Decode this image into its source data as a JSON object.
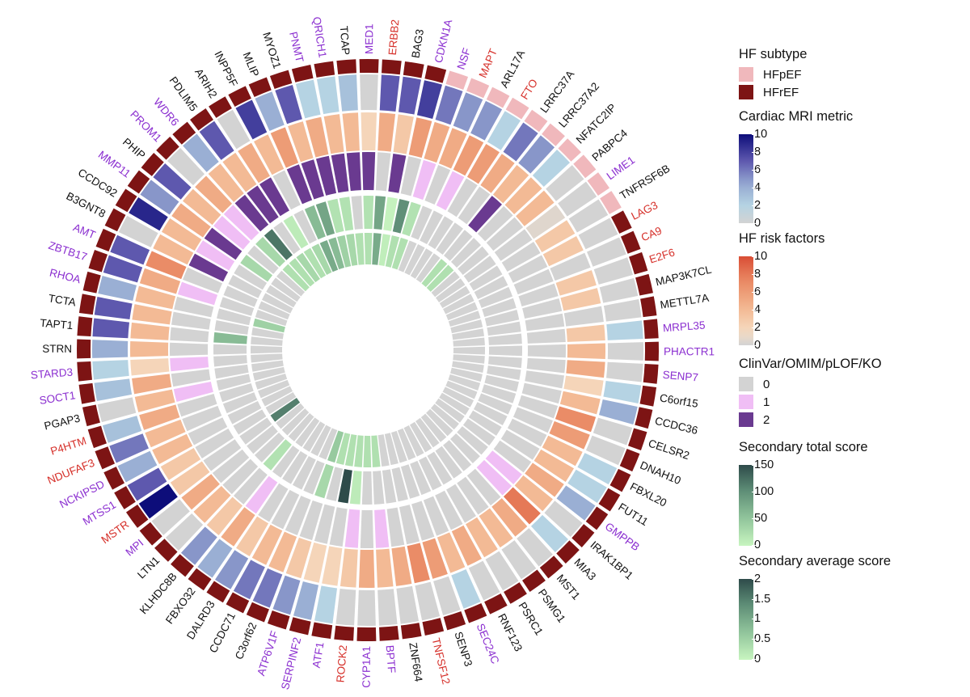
{
  "chart_data": {
    "type": "circular-heatmap",
    "rings_outer_to_inner": [
      "HF subtype",
      "Cardiac MRI metric",
      "HF risk factors",
      "ClinVar/OMIM/pLOF/KO",
      "Secondary total score",
      "Secondary average score"
    ],
    "genes": [
      {
        "name": "BAG3",
        "color": "black",
        "subtype": "HFrEF",
        "mri": 7,
        "risk": 3,
        "clin": 2,
        "tot": 3,
        "avg": 0.1
      },
      {
        "name": "CDKN1A",
        "color": "purple",
        "subtype": "HFrEF",
        "mri": 8,
        "risk": 6,
        "clin": 0,
        "tot": 100,
        "avg": 0.3
      },
      {
        "name": "NSF",
        "color": "purple",
        "subtype": "HFpEF",
        "mri": 6,
        "risk": 5,
        "clin": 1,
        "tot": 20,
        "avg": 0.3
      },
      {
        "name": "MAPT",
        "color": "red",
        "subtype": "HFpEF",
        "mri": 5,
        "risk": 5,
        "clin": 0,
        "tot": 0,
        "avg": 0
      },
      {
        "name": "ARL17A",
        "color": "black",
        "subtype": "HFpEF",
        "mri": 5,
        "risk": 6,
        "clin": 1,
        "tot": 0,
        "avg": 0
      },
      {
        "name": "FTO",
        "color": "red",
        "subtype": "HFpEF",
        "mri": 2,
        "risk": 6,
        "clin": 0,
        "tot": 0,
        "avg": 0
      },
      {
        "name": "LRRC37A",
        "color": "black",
        "subtype": "HFpEF",
        "mri": 6,
        "risk": 5,
        "clin": 0,
        "tot": 0,
        "avg": 0
      },
      {
        "name": "LRRC37A2",
        "color": "black",
        "subtype": "HFpEF",
        "mri": 5,
        "risk": 4,
        "clin": 2,
        "tot": 0,
        "avg": 0.3
      },
      {
        "name": "NFATC2IP",
        "color": "black",
        "subtype": "HFpEF",
        "mri": 2,
        "risk": 4,
        "clin": 0,
        "tot": 0,
        "avg": 0.3
      },
      {
        "name": "PABPC4",
        "color": "black",
        "subtype": "HFpEF",
        "mri": 0,
        "risk": 4,
        "clin": 0,
        "tot": 0,
        "avg": 0
      },
      {
        "name": "LIME1",
        "color": "purple",
        "subtype": "HFpEF",
        "mri": 0,
        "risk": 0.5,
        "clin": 0,
        "tot": 0,
        "avg": 0
      },
      {
        "name": "TNFRSF6B",
        "color": "black",
        "subtype": "HFpEF",
        "mri": 0,
        "risk": 3,
        "clin": 0,
        "tot": 0,
        "avg": 0
      },
      {
        "name": "LAG3",
        "color": "red",
        "subtype": "HFrEF",
        "mri": 0,
        "risk": 3,
        "clin": 0,
        "tot": 0,
        "avg": 0
      },
      {
        "name": "CA9",
        "color": "red",
        "subtype": "HFrEF",
        "mri": 0,
        "risk": 0,
        "clin": 0,
        "tot": 0,
        "avg": 0
      },
      {
        "name": "E2F6",
        "color": "red",
        "subtype": "HFrEF",
        "mri": 0,
        "risk": 3,
        "clin": 0,
        "tot": 0,
        "avg": 0
      },
      {
        "name": "MAP3K7CL",
        "color": "black",
        "subtype": "HFrEF",
        "mri": 0,
        "risk": 3,
        "clin": 0,
        "tot": 0,
        "avg": 0
      },
      {
        "name": "METTL7A",
        "color": "black",
        "subtype": "HFrEF",
        "mri": 0,
        "risk": 0,
        "clin": 0,
        "tot": 0,
        "avg": 0
      },
      {
        "name": "MRPL35",
        "color": "purple",
        "subtype": "HFrEF",
        "mri": 2,
        "risk": 3,
        "clin": 0,
        "tot": 0,
        "avg": 0
      },
      {
        "name": "PHACTR1",
        "color": "purple",
        "subtype": "HFrEF",
        "mri": 0,
        "risk": 4,
        "clin": 0,
        "tot": 0,
        "avg": 0
      },
      {
        "name": "SENP7",
        "color": "purple",
        "subtype": "HFrEF",
        "mri": 0,
        "risk": 5,
        "clin": 0,
        "tot": 0,
        "avg": 0
      },
      {
        "name": "C6orf15",
        "color": "black",
        "subtype": "HFrEF",
        "mri": 2,
        "risk": 2,
        "clin": 0,
        "tot": 0,
        "avg": 0
      },
      {
        "name": "CCDC36",
        "color": "black",
        "subtype": "HFrEF",
        "mri": 4,
        "risk": 4,
        "clin": 0,
        "tot": 0,
        "avg": 0
      },
      {
        "name": "CELSR2",
        "color": "black",
        "subtype": "HFrEF",
        "mri": 0,
        "risk": 7,
        "clin": 0,
        "tot": 0,
        "avg": 0
      },
      {
        "name": "DNAH10",
        "color": "black",
        "subtype": "HFrEF",
        "mri": 0,
        "risk": 6,
        "clin": 0,
        "tot": 0,
        "avg": 0
      },
      {
        "name": "FBXL20",
        "color": "black",
        "subtype": "HFrEF",
        "mri": 2,
        "risk": 4,
        "clin": 0,
        "tot": 0,
        "avg": 0
      },
      {
        "name": "FUT11",
        "color": "black",
        "subtype": "HFrEF",
        "mri": 2,
        "risk": 4,
        "clin": 0,
        "tot": 0,
        "avg": 0
      },
      {
        "name": "GMPPB",
        "color": "purple",
        "subtype": "HFrEF",
        "mri": 4,
        "risk": 5,
        "clin": 0,
        "tot": 0,
        "avg": 0
      },
      {
        "name": "IRAK1BP1",
        "color": "black",
        "subtype": "HFrEF",
        "mri": 0,
        "risk": 4,
        "clin": 1,
        "tot": 0,
        "avg": 0
      },
      {
        "name": "MIA3",
        "color": "black",
        "subtype": "HFrEF",
        "mri": 2,
        "risk": 8,
        "clin": 1,
        "tot": 0,
        "avg": 0
      },
      {
        "name": "MST1",
        "color": "black",
        "subtype": "HFrEF",
        "mri": 0,
        "risk": 5,
        "clin": 0,
        "tot": 0,
        "avg": 0
      },
      {
        "name": "PSMG1",
        "color": "black",
        "subtype": "HFrEF",
        "mri": 0,
        "risk": 4,
        "clin": 0,
        "tot": 0,
        "avg": 0
      },
      {
        "name": "PSRC1",
        "color": "black",
        "subtype": "HFrEF",
        "mri": 0,
        "risk": 4,
        "clin": 0,
        "tot": 0,
        "avg": 0
      },
      {
        "name": "RNF123",
        "color": "black",
        "subtype": "HFrEF",
        "mri": 0,
        "risk": 5,
        "clin": 0,
        "tot": 0,
        "avg": 0
      },
      {
        "name": "SEC24C",
        "color": "purple",
        "subtype": "HFrEF",
        "mri": 2,
        "risk": 4,
        "clin": 0,
        "tot": 0,
        "avg": 0
      },
      {
        "name": "SENP3",
        "color": "black",
        "subtype": "HFrEF",
        "mri": 0,
        "risk": 6,
        "clin": 0,
        "tot": 0,
        "avg": 0
      },
      {
        "name": "TNFSF12",
        "color": "red",
        "subtype": "HFrEF",
        "mri": 0,
        "risk": 7,
        "clin": 0,
        "tot": 0,
        "avg": 0
      },
      {
        "name": "ZNF664",
        "color": "black",
        "subtype": "HFrEF",
        "mri": 0,
        "risk": 5,
        "clin": 0,
        "tot": 0,
        "avg": 0
      },
      {
        "name": "BPTF",
        "color": "purple",
        "subtype": "HFrEF",
        "mri": 0,
        "risk": 4,
        "clin": 1,
        "tot": 0,
        "avg": 0.3
      },
      {
        "name": "CYP1A1",
        "color": "purple",
        "subtype": "HFrEF",
        "mri": 0,
        "risk": 5,
        "clin": 0,
        "tot": 0,
        "avg": 0.3
      },
      {
        "name": "ROCK2",
        "color": "red",
        "subtype": "HFrEF",
        "mri": 0,
        "risk": 3,
        "clin": 1,
        "tot": 10,
        "avg": 0.3
      },
      {
        "name": "ATF1",
        "color": "purple",
        "subtype": "HFrEF",
        "mri": 2,
        "risk": 2,
        "clin": 0,
        "tot": 150,
        "avg": 0.3
      },
      {
        "name": "SERPINF2",
        "color": "purple",
        "subtype": "HFrEF",
        "mri": 4,
        "risk": 2,
        "clin": 0,
        "tot": 0,
        "avg": 0.3
      },
      {
        "name": "ATP6V1F",
        "color": "purple",
        "subtype": "HFrEF",
        "mri": 5,
        "risk": 3,
        "clin": 0,
        "tot": 30,
        "avg": 0.6
      },
      {
        "name": "C3orf62",
        "color": "black",
        "subtype": "HFrEF",
        "mri": 6,
        "risk": 4,
        "clin": 0,
        "tot": 0,
        "avg": 0
      },
      {
        "name": "CCDC71",
        "color": "black",
        "subtype": "HFrEF",
        "mri": 6,
        "risk": 4,
        "clin": 0,
        "tot": 0,
        "avg": 0
      },
      {
        "name": "DALRD3",
        "color": "black",
        "subtype": "HFrEF",
        "mri": 5,
        "risk": 3,
        "clin": 0,
        "tot": 0,
        "avg": 0
      },
      {
        "name": "FBXO32",
        "color": "black",
        "subtype": "HFrEF",
        "mri": 4,
        "risk": 5,
        "clin": 1,
        "tot": 0,
        "avg": 0
      },
      {
        "name": "KLHDC8B",
        "color": "black",
        "subtype": "HFrEF",
        "mri": 5,
        "risk": 3,
        "clin": 0,
        "tot": 20,
        "avg": 0
      },
      {
        "name": "LTN1",
        "color": "black",
        "subtype": "HFrEF",
        "mri": 0,
        "risk": 4,
        "clin": 0,
        "tot": 0,
        "avg": 0
      },
      {
        "name": "MPI",
        "color": "purple",
        "subtype": "HFrEF",
        "mri": 0,
        "risk": 5,
        "clin": 0,
        "tot": 0,
        "avg": 0
      },
      {
        "name": "MSTR",
        "color": "red",
        "subtype": "HFrEF",
        "mri": 10,
        "risk": 3,
        "clin": 0,
        "tot": 0,
        "avg": 1.5
      },
      {
        "name": "MTSS1",
        "color": "purple",
        "subtype": "HFrEF",
        "mri": 7,
        "risk": 3,
        "clin": 0,
        "tot": 0,
        "avg": 0
      },
      {
        "name": "NCKIPSD",
        "color": "purple",
        "subtype": "HFrEF",
        "mri": 4,
        "risk": 4,
        "clin": 0,
        "tot": 0,
        "avg": 0
      },
      {
        "name": "NDUFAF3",
        "color": "red",
        "subtype": "HFrEF",
        "mri": 6,
        "risk": 4,
        "clin": 0,
        "tot": 0,
        "avg": 0
      },
      {
        "name": "P4HTM",
        "color": "red",
        "subtype": "HFrEF",
        "mri": 3,
        "risk": 5,
        "clin": 0,
        "tot": 0,
        "avg": 0
      },
      {
        "name": "PGAP3",
        "color": "black",
        "subtype": "HFrEF",
        "mri": 0,
        "risk": 4,
        "clin": 1,
        "tot": 0,
        "avg": 0
      },
      {
        "name": "SOCT1",
        "color": "purple",
        "subtype": "HFrEF",
        "mri": 3,
        "risk": 5,
        "clin": 0,
        "tot": 0,
        "avg": 0
      },
      {
        "name": "STARD3",
        "color": "purple",
        "subtype": "HFrEF",
        "mri": 2,
        "risk": 2,
        "clin": 1,
        "tot": 0,
        "avg": 0
      },
      {
        "name": "STRN",
        "color": "black",
        "subtype": "HFrEF",
        "mri": 4,
        "risk": 4,
        "clin": 0,
        "tot": 0,
        "avg": 0
      },
      {
        "name": "TAPT1",
        "color": "black",
        "subtype": "HFrEF",
        "mri": 7,
        "risk": 4,
        "clin": 0,
        "tot": 60,
        "avg": 0
      },
      {
        "name": "TCTA",
        "color": "black",
        "subtype": "HFrEF",
        "mri": 7,
        "risk": 4,
        "clin": 0,
        "tot": 0,
        "avg": 0
      },
      {
        "name": "RHOA",
        "color": "purple",
        "subtype": "HFrEF",
        "mri": 4,
        "risk": 4,
        "clin": 0,
        "tot": 0,
        "avg": 0.5
      },
      {
        "name": "ZBTB17",
        "color": "purple",
        "subtype": "HFrEF",
        "mri": 7,
        "risk": 5,
        "clin": 1,
        "tot": 0,
        "avg": 0
      },
      {
        "name": "AMT",
        "color": "purple",
        "subtype": "HFrEF",
        "mri": 7,
        "risk": 7,
        "clin": 0,
        "tot": 0,
        "avg": 0
      },
      {
        "name": "B3GNT8",
        "color": "black",
        "subtype": "HFrEF",
        "mri": 0,
        "risk": 4,
        "clin": 2,
        "tot": 0,
        "avg": 0
      },
      {
        "name": "CCDC92",
        "color": "black",
        "subtype": "HFrEF",
        "mri": 9,
        "risk": 4,
        "clin": 1,
        "tot": 0,
        "avg": 0
      },
      {
        "name": "MMP11",
        "color": "purple",
        "subtype": "HFrEF",
        "mri": 5,
        "risk": 5,
        "clin": 2,
        "tot": 30,
        "avg": 0
      },
      {
        "name": "PHIP",
        "color": "black",
        "subtype": "HFrEF",
        "mri": 7,
        "risk": 4,
        "clin": 1,
        "tot": 0,
        "avg": 0
      },
      {
        "name": "PROM1",
        "color": "purple",
        "subtype": "HFrEF",
        "mri": 0,
        "risk": 5,
        "clin": 1,
        "tot": 30,
        "avg": 0.3
      },
      {
        "name": "WDR6",
        "color": "purple",
        "subtype": "HFrEF",
        "mri": 4,
        "risk": 4,
        "clin": 2,
        "tot": 120,
        "avg": 0.3
      },
      {
        "name": "PDLIM5",
        "color": "black",
        "subtype": "HFrEF",
        "mri": 7,
        "risk": 4,
        "clin": 2,
        "tot": 0,
        "avg": 0.4
      },
      {
        "name": "ARIH2",
        "color": "black",
        "subtype": "HFrEF",
        "mri": 0,
        "risk": 5,
        "clin": 2,
        "tot": 10,
        "avg": 0.3
      },
      {
        "name": "INPP5F",
        "color": "black",
        "subtype": "HFrEF",
        "mri": 8,
        "risk": 4,
        "clin": 0,
        "tot": 0,
        "avg": 0.4
      },
      {
        "name": "MLIP",
        "color": "black",
        "subtype": "HFrEF",
        "mri": 4,
        "risk": 6,
        "clin": 2,
        "tot": 60,
        "avg": 1
      },
      {
        "name": "MYOZ1",
        "color": "black",
        "subtype": "HFrEF",
        "mri": 7,
        "risk": 4,
        "clin": 2,
        "tot": 80,
        "avg": 0.8
      },
      {
        "name": "PNMT",
        "color": "purple",
        "subtype": "HFrEF",
        "mri": 2,
        "risk": 5,
        "clin": 2,
        "tot": 20,
        "avg": 0.5
      },
      {
        "name": "QRICH1",
        "color": "purple",
        "subtype": "HFrEF",
        "mri": 2,
        "risk": 4,
        "clin": 2,
        "tot": 20,
        "avg": 0.4
      },
      {
        "name": "TCAP",
        "color": "black",
        "subtype": "HFrEF",
        "mri": 3,
        "risk": 4,
        "clin": 2,
        "tot": 0,
        "avg": 0.3
      },
      {
        "name": "MED1",
        "color": "purple",
        "subtype": "HFrEF",
        "mri": 0,
        "risk": 2,
        "clin": 2,
        "tot": 20,
        "avg": 0.3
      },
      {
        "name": "ERBB2",
        "color": "red",
        "subtype": "HFrEF",
        "mri": 7,
        "risk": 5,
        "clin": 0,
        "tot": 80,
        "avg": 1
      }
    ]
  },
  "legend": {
    "subtype": {
      "title": "HF subtype",
      "items": [
        {
          "label": "HFpEF",
          "color": "#f0b8bc"
        },
        {
          "label": "HFrEF",
          "color": "#7d1414"
        }
      ]
    },
    "mri": {
      "title": "Cardiac MRI metric",
      "ticks": [
        "10",
        "8",
        "6",
        "4",
        "2",
        "0"
      ],
      "max": 10
    },
    "risk": {
      "title": "HF risk factors",
      "ticks": [
        "10",
        "8",
        "6",
        "4",
        "2",
        "0"
      ],
      "max": 10
    },
    "clin": {
      "title": "ClinVar/OMIM/pLOF/KO",
      "items": [
        {
          "label": "0",
          "color": "#d3d3d3"
        },
        {
          "label": "1",
          "color": "#f0bef5"
        },
        {
          "label": "2",
          "color": "#6a3a90"
        }
      ]
    },
    "tot": {
      "title": "Secondary total score",
      "ticks": [
        "150",
        "100",
        "50",
        "0"
      ],
      "max": 150
    },
    "avg": {
      "title": "Secondary average score",
      "ticks": [
        "2",
        "1.5",
        "1",
        "0.5",
        "0"
      ],
      "max": 2
    }
  },
  "colors": {
    "black": "#111111",
    "purple": "#8b2fd0",
    "red": "#d6302a",
    "gap": "#ffffff",
    "zero": "#d3d3d3"
  }
}
